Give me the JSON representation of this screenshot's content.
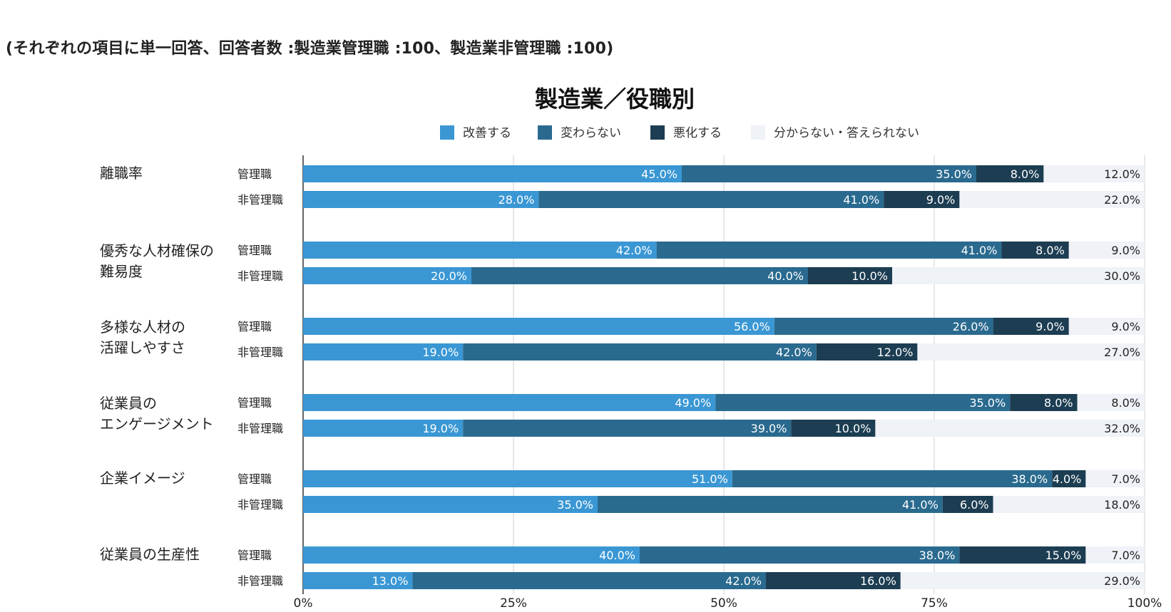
{
  "note": "(それぞれの項目に単一回答、回答者数 :製造業管理職 :100、製造業非管理職 :100)",
  "chart_data": {
    "type": "bar",
    "orientation": "horizontal",
    "stacked": true,
    "title": "製造業／役職別",
    "legend_position": "top",
    "grid": true,
    "xlim": [
      0,
      100
    ],
    "x_ticks": [
      "0%",
      "25%",
      "50%",
      "75%",
      "100%"
    ],
    "legend": [
      {
        "name": "改善する",
        "color": "#3a97d4"
      },
      {
        "name": "変わらない",
        "color": "#2a6a8f"
      },
      {
        "name": "悪化する",
        "color": "#1c3d52"
      },
      {
        "name": "分からない・答えられない",
        "color": "#eff2f7"
      }
    ],
    "groups": [
      {
        "label_lines": [
          "離職率"
        ],
        "bars": [
          {
            "label": "管理職",
            "values": [
              45.0,
              35.0,
              8.0,
              12.0
            ]
          },
          {
            "label": "非管理職",
            "values": [
              28.0,
              41.0,
              9.0,
              22.0
            ]
          }
        ]
      },
      {
        "label_lines": [
          "優秀な人材確保の",
          "難易度"
        ],
        "bars": [
          {
            "label": "管理職",
            "values": [
              42.0,
              41.0,
              8.0,
              9.0
            ]
          },
          {
            "label": "非管理職",
            "values": [
              20.0,
              40.0,
              10.0,
              30.0
            ]
          }
        ]
      },
      {
        "label_lines": [
          "多様な人材の",
          "活躍しやすさ"
        ],
        "bars": [
          {
            "label": "管理職",
            "values": [
              56.0,
              26.0,
              9.0,
              9.0
            ]
          },
          {
            "label": "非管理職",
            "values": [
              19.0,
              42.0,
              12.0,
              27.0
            ]
          }
        ]
      },
      {
        "label_lines": [
          "従業員の",
          "エンゲージメント"
        ],
        "bars": [
          {
            "label": "管理職",
            "values": [
              49.0,
              35.0,
              8.0,
              8.0
            ]
          },
          {
            "label": "非管理職",
            "values": [
              19.0,
              39.0,
              10.0,
              32.0
            ]
          }
        ]
      },
      {
        "label_lines": [
          "企業イメージ"
        ],
        "bars": [
          {
            "label": "管理職",
            "values": [
              51.0,
              38.0,
              4.0,
              7.0
            ]
          },
          {
            "label": "非管理職",
            "values": [
              35.0,
              41.0,
              6.0,
              18.0
            ]
          }
        ]
      },
      {
        "label_lines": [
          "従業員の生産性"
        ],
        "bars": [
          {
            "label": "管理職",
            "values": [
              40.0,
              38.0,
              15.0,
              7.0
            ]
          },
          {
            "label": "非管理職",
            "values": [
              13.0,
              42.0,
              16.0,
              29.0
            ]
          }
        ]
      }
    ]
  }
}
